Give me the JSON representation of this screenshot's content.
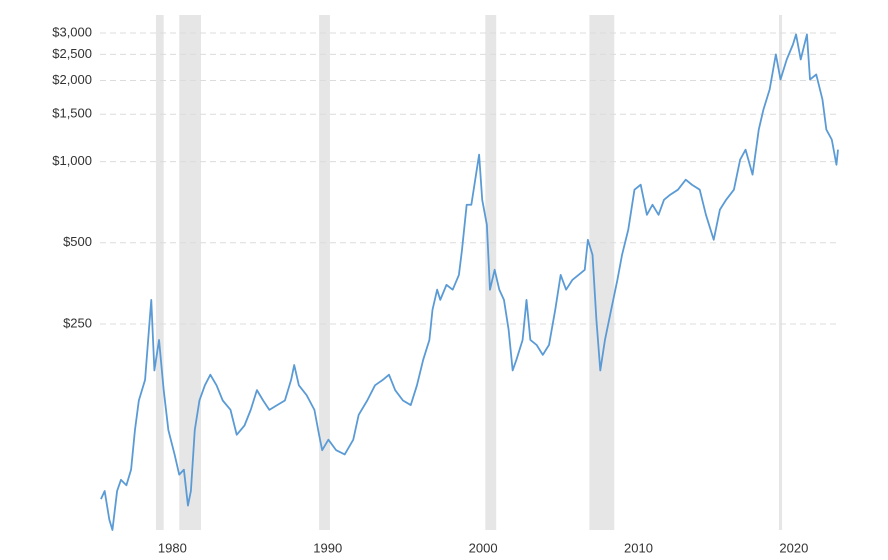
{
  "chart_data": {
    "type": "line",
    "x": [
      1976.46,
      1976.7,
      1977.0,
      1977.2,
      1977.5,
      1977.75,
      1978.1,
      1978.4,
      1978.65,
      1978.9,
      1979.3,
      1979.55,
      1979.7,
      1979.9,
      1980.2,
      1980.5,
      1980.8,
      1981.2,
      1981.5,
      1981.8,
      1982.06,
      1982.25,
      1982.5,
      1982.8,
      1983.15,
      1983.5,
      1983.9,
      1984.3,
      1984.8,
      1985.2,
      1985.7,
      1986.1,
      1986.5,
      1986.9,
      1987.3,
      1987.8,
      1988.3,
      1988.7,
      1988.9,
      1989.2,
      1989.7,
      1990.2,
      1990.5,
      1990.7,
      1991.1,
      1991.6,
      1992.15,
      1992.7,
      1993.05,
      1993.6,
      1994.1,
      1994.6,
      1995.0,
      1995.4,
      1995.9,
      1996.4,
      1996.8,
      1997.2,
      1997.6,
      1997.8,
      1998.1,
      1998.3,
      1998.7,
      1999.1,
      1999.5,
      1999.7,
      2000.0,
      2000.3,
      2000.5,
      2000.8,
      2001.0,
      2001.3,
      2001.5,
      2001.8,
      2002.1,
      2002.4,
      2002.7,
      2002.96,
      2003.2,
      2003.6,
      2003.85,
      2004.1,
      2004.5,
      2004.9,
      2005.3,
      2005.7,
      2006.05,
      2006.4,
      2006.8,
      2007.2,
      2007.6,
      2007.8,
      2008.1,
      2008.35,
      2008.6,
      2008.9,
      2009.3,
      2009.7,
      2010.0,
      2010.4,
      2010.8,
      2011.2,
      2011.6,
      2011.96,
      2012.35,
      2012.7,
      2013.1,
      2013.6,
      2014.1,
      2014.5,
      2015.0,
      2015.4,
      2015.9,
      2016.3,
      2016.7,
      2017.2,
      2017.6,
      2017.95,
      2018.4,
      2018.8,
      2019.1,
      2019.5,
      2019.9,
      2020.2,
      2020.6,
      2021.0,
      2021.2,
      2021.5,
      2021.9,
      2022.1,
      2022.5,
      2022.9,
      2023.15,
      2023.5,
      2023.8,
      2023.9
    ],
    "series": [
      {
        "color": "#5b9bd5",
        "values": [
          56,
          60,
          47,
          43,
          60,
          66,
          63,
          72,
          101,
          130,
          155,
          238,
          307,
          168,
          218,
          142,
          101,
          82,
          69,
          72,
          53,
          60,
          101,
          130,
          148,
          162,
          148,
          130,
          120,
          97,
          105,
          120,
          142,
          130,
          120,
          125,
          130,
          155,
          176,
          148,
          136,
          120,
          97,
          85,
          93,
          85,
          82,
          93,
          115,
          130,
          148,
          155,
          162,
          142,
          130,
          125,
          148,
          184,
          218,
          282,
          335,
          307,
          349,
          335,
          380,
          471,
          692,
          692,
          821,
          1062,
          722,
          583,
          335,
          397,
          335,
          307,
          238,
          168,
          184,
          218,
          307,
          218,
          209,
          192,
          209,
          282,
          380,
          335,
          364,
          380,
          397,
          513,
          451,
          259,
          168,
          218,
          282,
          364,
          451,
          559,
          787,
          821,
          635,
          692,
          635,
          722,
          754,
          787,
          857,
          821,
          787,
          635,
          513,
          664,
          722,
          787,
          1017,
          1108,
          895,
          1315,
          1560,
          1852,
          2500,
          2017,
          2393,
          2721,
          2965,
          2393,
          2965,
          2017,
          2107,
          1700,
          1315,
          1207,
          974,
          1108
        ]
      }
    ],
    "recessions": [
      [
        1980.0,
        1980.5
      ],
      [
        1981.5,
        1982.9
      ],
      [
        1990.5,
        1991.2
      ],
      [
        2001.2,
        2001.9
      ],
      [
        2007.9,
        2009.5
      ],
      [
        2020.1,
        2020.3
      ]
    ],
    "recession_color": "#e6e6e6",
    "log_scale": true,
    "grid": true,
    "xlim": [
      1976.4,
      2023.9
    ],
    "xticks": [
      1980,
      1990,
      2000,
      2010,
      2020
    ],
    "ylim": [
      43,
      3500
    ],
    "yticks": [
      {
        "value": 250,
        "label": "$250"
      },
      {
        "value": 500,
        "label": "$500"
      },
      {
        "value": 1000,
        "label": "$1,000"
      },
      {
        "value": 1500,
        "label": "$1,500"
      },
      {
        "value": 2000,
        "label": "$2,000"
      },
      {
        "value": 2500,
        "label": "$2,500"
      },
      {
        "value": 3000,
        "label": "$3,000"
      }
    ]
  }
}
